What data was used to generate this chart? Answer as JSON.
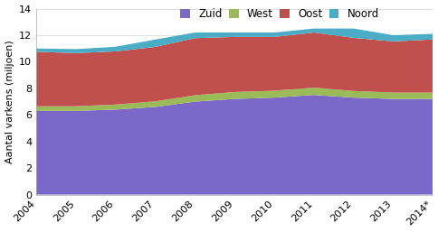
{
  "years": [
    "2004",
    "2005",
    "2006",
    "2007",
    "2008",
    "2009",
    "2010",
    "2011",
    "2012",
    "2013",
    "2014*"
  ],
  "Zuid": [
    6.3,
    6.3,
    6.4,
    6.6,
    7.0,
    7.2,
    7.3,
    7.5,
    7.3,
    7.2,
    7.2
  ],
  "West": [
    0.35,
    0.35,
    0.38,
    0.42,
    0.48,
    0.52,
    0.52,
    0.55,
    0.5,
    0.48,
    0.48
  ],
  "Oost": [
    4.1,
    4.0,
    4.0,
    4.1,
    4.3,
    4.15,
    4.05,
    4.15,
    4.0,
    3.85,
    4.0
  ],
  "Noord": [
    0.25,
    0.3,
    0.35,
    0.55,
    0.42,
    0.33,
    0.33,
    0.3,
    0.7,
    0.47,
    0.42
  ],
  "colors": {
    "Zuid": "#7B68C8",
    "West": "#9BBB59",
    "Oost": "#C0504D",
    "Noord": "#4BACC6"
  },
  "ylabel": "Aantal varkens (miljoen)",
  "ylim": [
    0,
    14
  ],
  "yticks": [
    0,
    2,
    4,
    6,
    8,
    10,
    12,
    14
  ],
  "axis_fontsize": 8,
  "legend_fontsize": 8.5,
  "grid_color": "#d0d0d0"
}
